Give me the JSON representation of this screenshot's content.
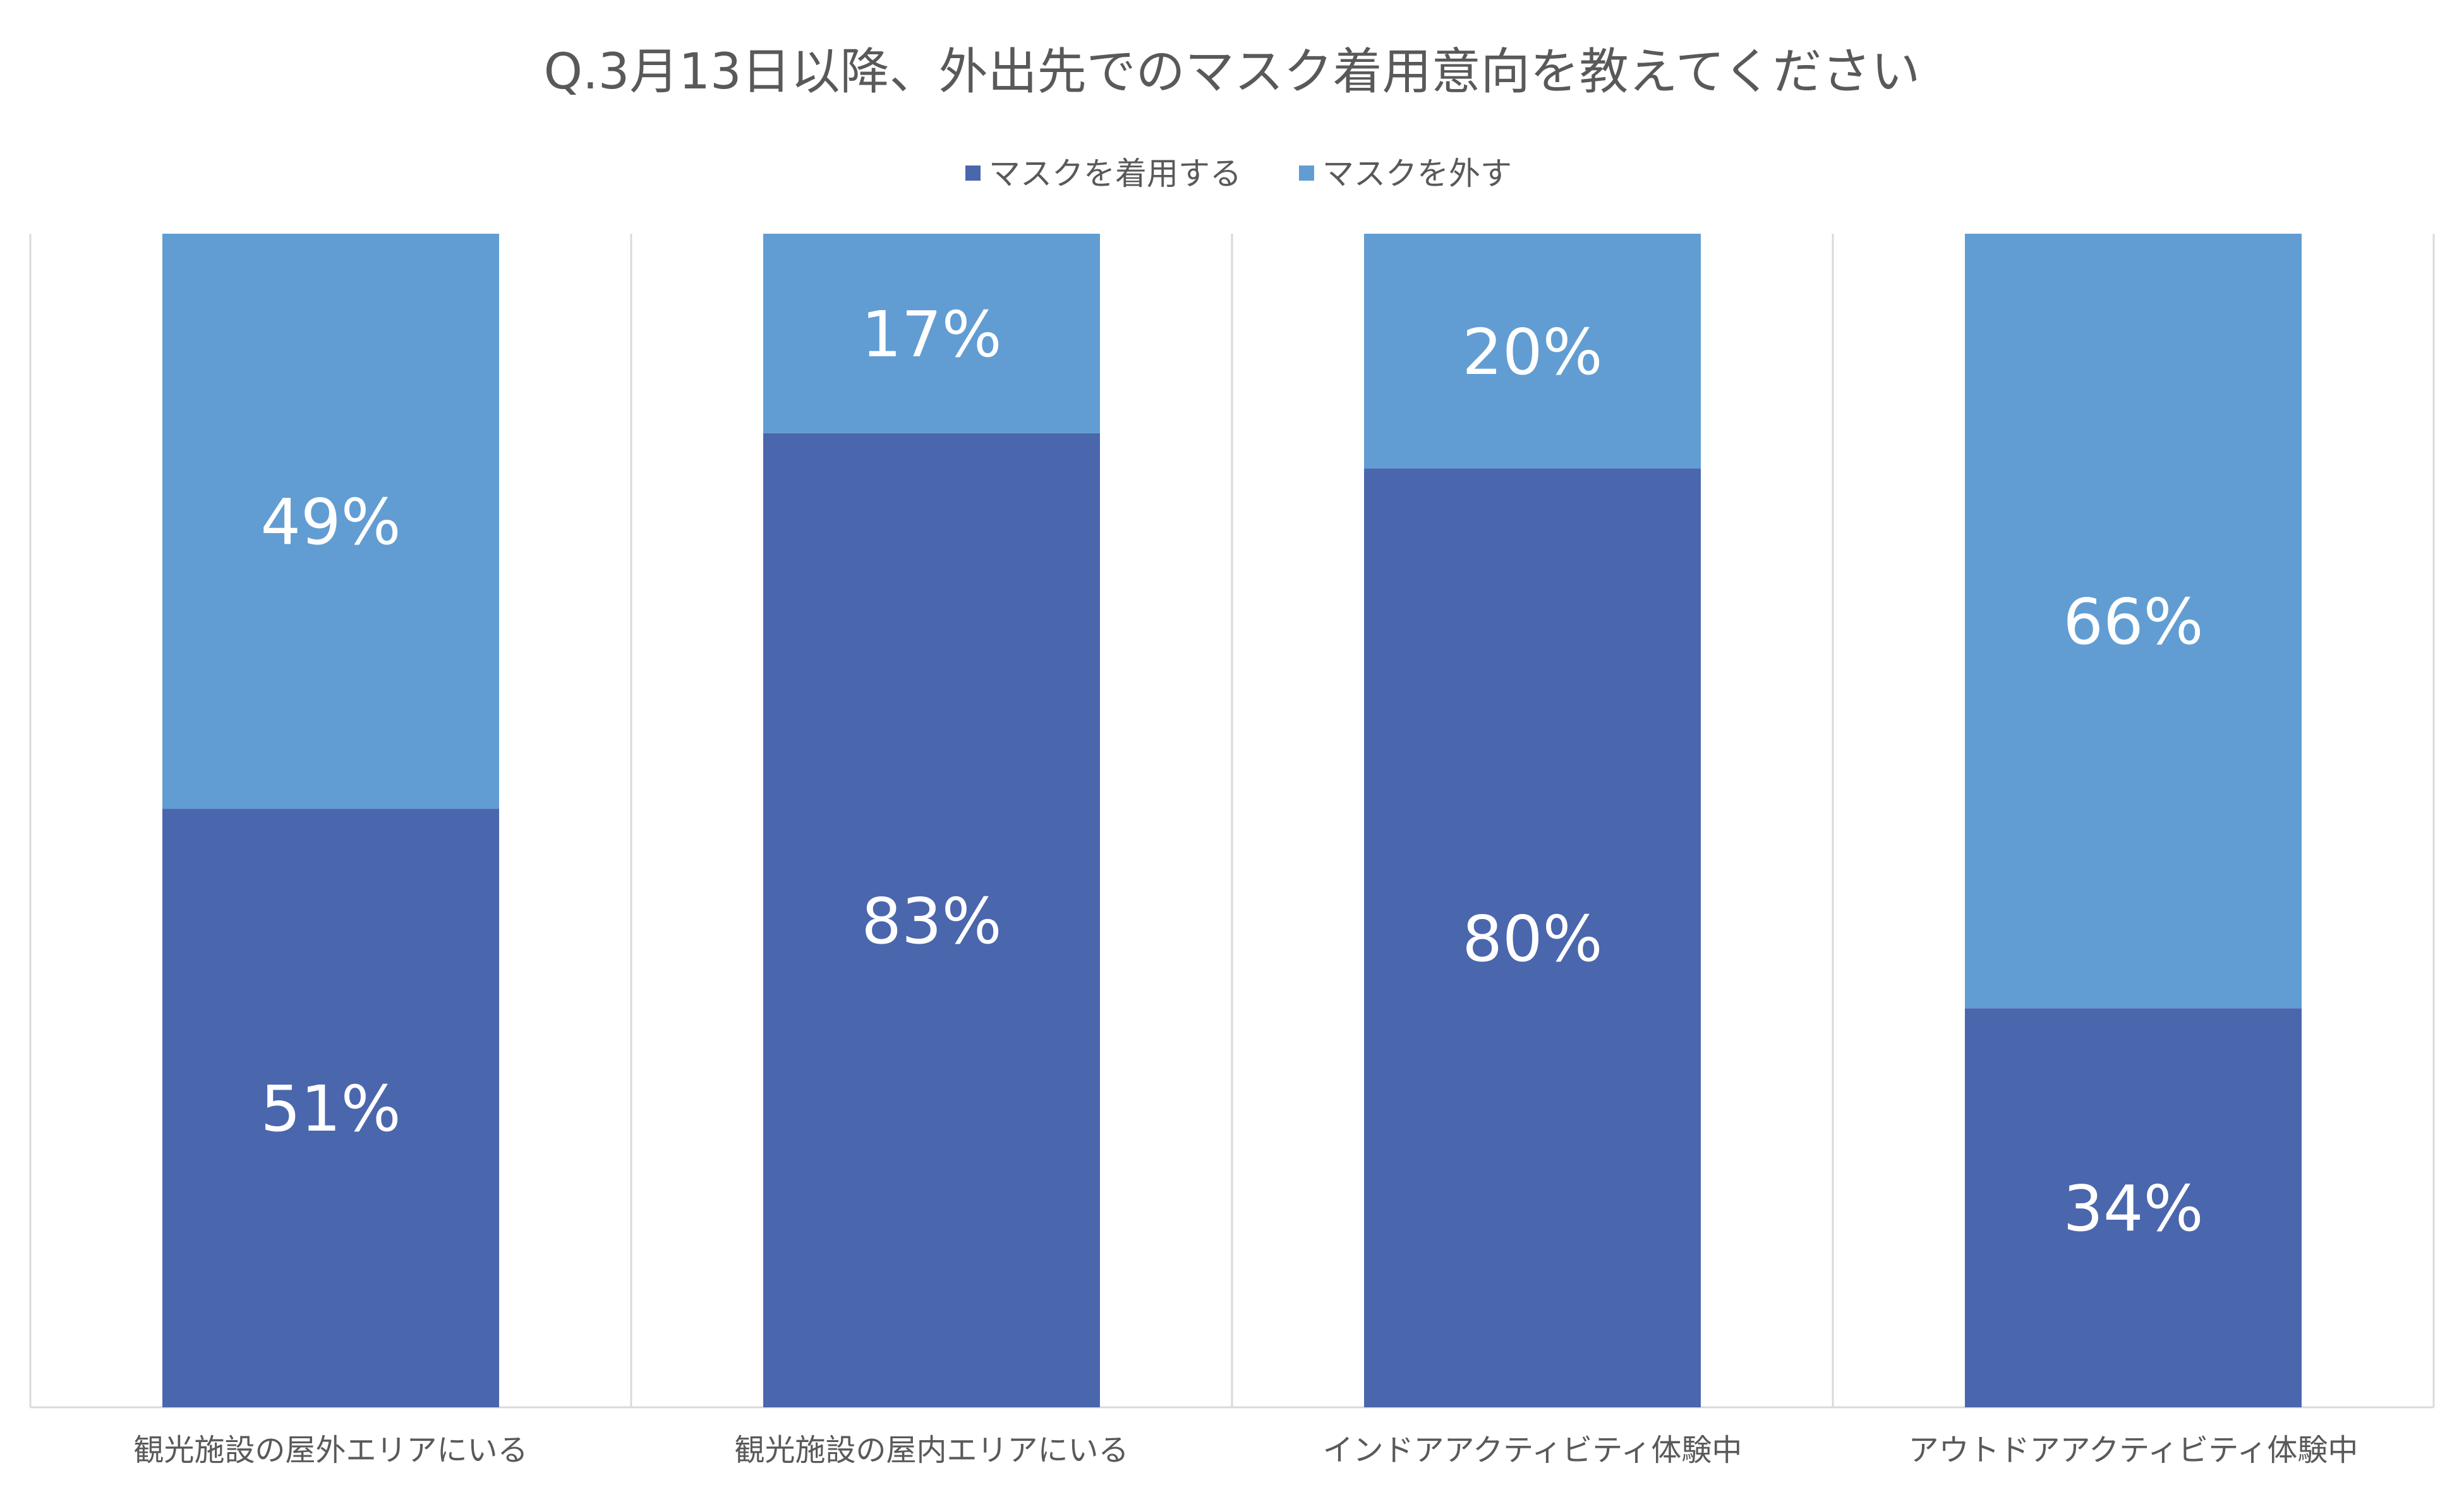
{
  "chart_data": {
    "type": "bar",
    "stacked": true,
    "percent": true,
    "title": "Q.3月13日以降、外出先でのマスク着用意向を教えてください",
    "legend_position": "top",
    "categories": [
      "観光施設の屋外エリアにいる",
      "観光施設の屋内エリアにいる",
      "インドアアクティビティ体験中",
      "アウトドアアクティビティ体験中"
    ],
    "series": [
      {
        "name": "マスクを着用する",
        "values": [
          51,
          83,
          80,
          34
        ],
        "labels": [
          "51%",
          "83%",
          "80%",
          "34%"
        ],
        "color": "#4a66ad"
      },
      {
        "name": "マスクを外す",
        "values": [
          49,
          17,
          20,
          66
        ],
        "labels": [
          "49%",
          "17%",
          "20%",
          "66%"
        ],
        "color": "#619dd2"
      }
    ],
    "ylim": [
      0,
      100
    ],
    "grid": "vertical separators between categories"
  }
}
